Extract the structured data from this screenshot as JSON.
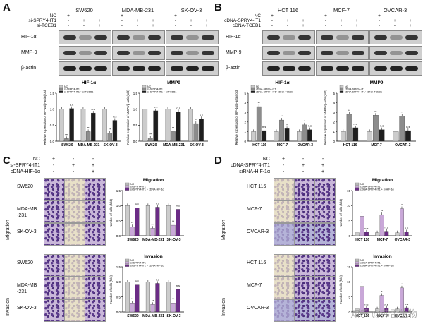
{
  "panels": {
    "A": {
      "letter": "A",
      "cell_lines": [
        "SW620",
        "MDA-MB-231",
        "SK-OV-3"
      ],
      "rows": [
        "NC",
        "si-SPRY4-IT1",
        "si-TCEB1"
      ],
      "signs": [
        [
          "+",
          "-",
          "-"
        ],
        [
          "-",
          "+",
          "+"
        ],
        [
          "-",
          "-",
          "+"
        ]
      ],
      "blots": [
        "HIF-1α",
        "MMP-9",
        "β-actin"
      ],
      "charts": [
        {
          "title": "HIF-1α",
          "ylabel": "Relative expression of HIF-1α/β-actin(fold)"
        },
        {
          "title": "MMP9",
          "ylabel": "Relative expression of MMP9/β-actin(fold)"
        }
      ]
    },
    "B": {
      "letter": "B",
      "cell_lines": [
        "HCT 116",
        "MCF-7",
        "OVCAR-3"
      ],
      "rows": [
        "NC",
        "cDNA-SPRY4-IT1",
        "cDNA-TCEB1"
      ],
      "signs": [
        [
          "+",
          "-",
          "-"
        ],
        [
          "-",
          "+",
          "+"
        ],
        [
          "-",
          "-",
          "+"
        ]
      ],
      "blots": [
        "HIF-1α",
        "MMP-9",
        "β-actin"
      ],
      "charts": [
        {
          "title": "HIF-1α",
          "ylabel": "Relative expression of HIF-1α/β-actin(fold)"
        },
        {
          "title": "MMP9",
          "ylabel": "Relative expression of MMP9/β-actin(fold)"
        }
      ]
    },
    "C": {
      "letter": "C",
      "rows": [
        "NC",
        "si-SPRY4-IT1",
        "cDNA-HIF-1α"
      ],
      "signs": [
        [
          "+",
          "-",
          "-"
        ],
        [
          "-",
          "+",
          "+"
        ],
        [
          "-",
          "-",
          "+"
        ]
      ],
      "side_labels": [
        "Migration",
        "Invasion"
      ],
      "cell_lines": [
        "SW620",
        "MDA-MB\n-231",
        "SK-OV-3"
      ],
      "charts": [
        {
          "title": "Migration",
          "ylabel": "Number of cells (fold)"
        },
        {
          "title": "Invasion",
          "ylabel": "Number of cells (fold)"
        }
      ]
    },
    "D": {
      "letter": "D",
      "rows": [
        "NC",
        "cDNA-SPRY4-IT1",
        "siRNA-HIF-1α"
      ],
      "signs": [
        [
          "+",
          "-",
          "-"
        ],
        [
          "-",
          "+",
          "+"
        ],
        [
          "-",
          "-",
          "+"
        ]
      ],
      "side_labels": [
        "Migration",
        "Invasion"
      ],
      "cell_lines": [
        "HCT 116",
        "MCF-7",
        "OVCAR-3"
      ],
      "charts": [
        {
          "title": "Migration",
          "ylabel": "Number of cells (fold)"
        },
        {
          "title": "Invasion",
          "ylabel": "Number of cells (fold)"
        }
      ]
    }
  },
  "chart_data": [
    {
      "id": "A1",
      "type": "bar",
      "title": "HIF-1α",
      "categories": [
        "SW620",
        "MDA-MB-231",
        "SK-OV-3"
      ],
      "series": [
        {
          "name": "NC",
          "values": [
            1.0,
            1.0,
            1.0
          ]
        },
        {
          "name": "si-SPRY4-IT1",
          "values": [
            0.08,
            0.3,
            0.25
          ]
        },
        {
          "name": "si-SPRY4-IT1 + si-TCEB1",
          "values": [
            1.02,
            0.88,
            0.65
          ]
        }
      ],
      "ylim": [
        0,
        1.5
      ],
      "yticks": [
        "0.0",
        "0.5",
        "1.0",
        "1.5"
      ],
      "ylabel": "Relative expression of HIF-1α/β-actin(fold)",
      "colors": [
        "#cccccc",
        "#8c8c8c",
        "#1e1e1e"
      ],
      "annotations": [
        [
          "",
          "***",
          "n.s"
        ],
        [
          "",
          "**",
          "n.s"
        ],
        [
          "",
          "**",
          "n.s"
        ]
      ]
    },
    {
      "id": "A2",
      "type": "bar",
      "title": "MMP9",
      "categories": [
        "SW620",
        "MDA-MB-231",
        "SK-OV-3"
      ],
      "series": [
        {
          "name": "NC",
          "values": [
            1.0,
            1.0,
            1.0
          ]
        },
        {
          "name": "si-SPRY4-IT1",
          "values": [
            0.1,
            0.3,
            0.55
          ]
        },
        {
          "name": "si-SPRY4-IT1 + si-TCEB1",
          "values": [
            0.95,
            0.92,
            0.7
          ]
        }
      ],
      "ylim": [
        0,
        1.5
      ],
      "yticks": [
        "0.0",
        "0.5",
        "1.0",
        "1.5"
      ],
      "ylabel": "Relative expression of MMP9/β-actin(fold)",
      "colors": [
        "#cccccc",
        "#8c8c8c",
        "#1e1e1e"
      ],
      "annotations": [
        [
          "",
          "***",
          "n.s"
        ],
        [
          "",
          "**",
          "n.s"
        ],
        [
          "",
          "*",
          "n.s"
        ]
      ]
    },
    {
      "id": "B1",
      "type": "bar",
      "title": "HIF-1α",
      "categories": [
        "HCT 116",
        "MCF-7",
        "OVCAR-3"
      ],
      "series": [
        {
          "name": "NC",
          "values": [
            1.0,
            1.0,
            1.0
          ]
        },
        {
          "name": "cDNA-SPRY4-IT1",
          "values": [
            3.6,
            2.2,
            1.7
          ]
        },
        {
          "name": "cDNA-SPRY4-IT1+cDNA-TCEB1",
          "values": [
            1.1,
            1.3,
            1.2
          ]
        }
      ],
      "ylim": [
        0,
        5
      ],
      "yticks": [
        "0",
        "1",
        "2",
        "3",
        "4",
        "5"
      ],
      "ylabel": "Relative expression of HIF-1α/β-actin(fold)",
      "colors": [
        "#cccccc",
        "#8c8c8c",
        "#1e1e1e"
      ],
      "annotations": [
        [
          "",
          "**",
          "n.s"
        ],
        [
          "",
          "**",
          "*"
        ],
        [
          "",
          "*",
          "n.s"
        ]
      ]
    },
    {
      "id": "B2",
      "type": "bar",
      "title": "MMP9",
      "categories": [
        "HCT 116",
        "MCF-7",
        "OVCAR-3"
      ],
      "series": [
        {
          "name": "NC",
          "values": [
            1.0,
            1.0,
            1.0
          ]
        },
        {
          "name": "cDNA-SPRY4-IT1",
          "values": [
            2.8,
            2.7,
            2.6
          ]
        },
        {
          "name": "cDNA-SPRY4-IT1+cDNA-TCEB1",
          "values": [
            1.4,
            1.2,
            1.1
          ]
        }
      ],
      "ylim": [
        0,
        5
      ],
      "yticks": [
        "0",
        "1",
        "2",
        "3",
        "4",
        "5"
      ],
      "ylabel": "Relative expression of MMP9/β-actin(fold)",
      "colors": [
        "#cccccc",
        "#8c8c8c",
        "#1e1e1e"
      ],
      "annotations": [
        [
          "",
          "**",
          "n.s"
        ],
        [
          "",
          "**",
          "n.s"
        ],
        [
          "",
          "**",
          "n.s"
        ]
      ]
    },
    {
      "id": "C1",
      "type": "bar",
      "title": "Migration",
      "categories": [
        "SW620",
        "MDA-MB-231",
        "SK-OV-3"
      ],
      "series": [
        {
          "name": "NC",
          "values": [
            1.0,
            1.0,
            1.0
          ]
        },
        {
          "name": "si-SPRY4-IT1",
          "values": [
            0.3,
            0.25,
            0.35
          ]
        },
        {
          "name": "si-SPRY4-IT1 + cDNA-HIF-1α",
          "values": [
            0.92,
            0.95,
            0.88
          ]
        }
      ],
      "ylim": [
        0,
        1.5
      ],
      "yticks": [
        "0.0",
        "0.5",
        "1.0",
        "1.5"
      ],
      "ylabel": "Number of cells (fold)",
      "colors": [
        "#cccccc",
        "#c9a8d8",
        "#6b2c86"
      ],
      "annotations": [
        [
          "",
          "**",
          "n.s"
        ],
        [
          "",
          "***",
          "n.s"
        ],
        [
          "",
          "**",
          "n.s"
        ]
      ]
    },
    {
      "id": "C2",
      "type": "bar",
      "title": "Invasion",
      "categories": [
        "SW620",
        "MDA-MB-231",
        "SK-OV-3"
      ],
      "series": [
        {
          "name": "NC",
          "values": [
            1.0,
            1.0,
            1.0
          ]
        },
        {
          "name": "si-SPRY4-IT1",
          "values": [
            0.3,
            0.25,
            0.3
          ]
        },
        {
          "name": "si-SPRY4-IT1 + cDNA-HIF-1α",
          "values": [
            0.9,
            0.95,
            0.75
          ]
        }
      ],
      "ylim": [
        0,
        1.5
      ],
      "yticks": [
        "0.0",
        "0.5",
        "1.0",
        "1.5"
      ],
      "ylabel": "Number of cells (fold)",
      "colors": [
        "#cccccc",
        "#c9a8d8",
        "#6b2c86"
      ],
      "annotations": [
        [
          "",
          "**",
          "n.s"
        ],
        [
          "",
          "**",
          "n.s"
        ],
        [
          "",
          "**",
          "n.s"
        ]
      ]
    },
    {
      "id": "D1",
      "type": "bar",
      "title": "Migration",
      "categories": [
        "HCT 116",
        "MCF-7",
        "OVCAR-3"
      ],
      "series": [
        {
          "name": "NC",
          "values": [
            1.0,
            1.0,
            1.0
          ]
        },
        {
          "name": "cDNA-SPRY4-IT1",
          "values": [
            6.5,
            7.0,
            9.0
          ]
        },
        {
          "name": "cDNA-SPRY4-IT1 + si-HIF-1α",
          "values": [
            1.2,
            1.5,
            1.3
          ]
        }
      ],
      "ylim": [
        0,
        15
      ],
      "yticks": [
        "0",
        "5",
        "10",
        "15"
      ],
      "ylabel": "Number of cells (fold)",
      "colors": [
        "#cccccc",
        "#c9a8d8",
        "#6b2c86"
      ],
      "annotations": [
        [
          "",
          "*",
          "n.s"
        ],
        [
          "",
          "**",
          "n.s"
        ],
        [
          "",
          "*",
          "n.s"
        ]
      ]
    },
    {
      "id": "D2",
      "type": "bar",
      "title": "Invasion",
      "categories": [
        "HCT 116",
        "MCF-7",
        "OVCAR-3"
      ],
      "series": [
        {
          "name": "NC",
          "values": [
            1.0,
            1.0,
            1.0
          ]
        },
        {
          "name": "cDNA-SPRY4-IT1",
          "values": [
            8.5,
            5.5,
            8.0
          ]
        },
        {
          "name": "cDNA-SPRY4-IT1 + si-HIF-1α",
          "values": [
            1.3,
            1.2,
            1.4
          ]
        }
      ],
      "ylim": [
        0,
        15
      ],
      "yticks": [
        "0",
        "5",
        "10",
        "15"
      ],
      "ylabel": "Number of cells (fold)",
      "colors": [
        "#cccccc",
        "#c9a8d8",
        "#6b2c86"
      ],
      "annotations": [
        [
          "",
          "*",
          "n.s"
        ],
        [
          "",
          "*",
          "n.s"
        ],
        [
          "",
          "*",
          "n.s"
        ]
      ]
    }
  ],
  "watermark": "知乎 @弗雷生物"
}
